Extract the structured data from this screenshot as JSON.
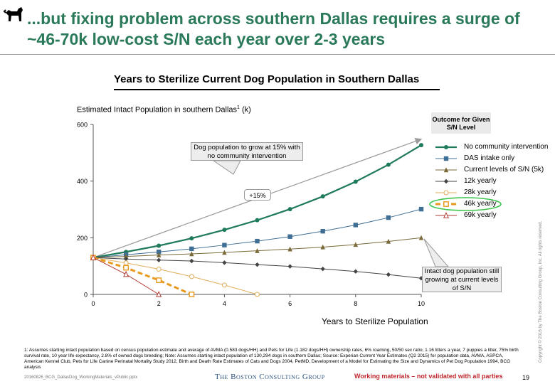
{
  "slide": {
    "title": "...but fixing problem across southern Dallas requires a surge of ~46-70k low-cost S/N each year over 2-3 years",
    "chart_title": "Years to Sterilize Current Dog Population in Southern Dallas",
    "footnote": "1: Assumes starting intact population based on census population estimate and average of AVMA (0.583 dogs/HH) and Pets for Life (1.182 dogs/HH) ownership rates, 6% roaming, 50/50 sex ratio, 1.16 litters a year, 7 puppies a litter, 75% birth survival rate, 10 year life expectancy, 2.8% of owned dogs breeding; Note: Assumes starting intact population of 130,294 dogs in southern Dallas; Source: Experian Current Year Estimates (Q2 2015) for population data, AVMA, ASPCA, American Kennel Club, Pets for Life Canine Perinatal Mortality Study 2012, Birth and Death Rate Estimates of Cats and Dogs 2004, PetMD, Development of a Model for Estimating the Size and Dynamics of Pet Dog Population 1994, BCG analysis",
    "footer_file": "20160826_BCG_DallasDog_WorkingMaterials_vPublic.pptx",
    "footer_brand": "The Boston Consulting Group",
    "footer_warning": "Working materials – not validated with all parties",
    "page_number": "19",
    "copyright": "Copyright © 2016 by The Boston Consulting Group, Inc. All rights reserved."
  },
  "chart_data": {
    "type": "line",
    "ylabel_main": "Estimated Intact Population in southern Dallas",
    "ylabel_sup": "1",
    "ylabel_unit": " (k)",
    "xlabel": "Years to Sterilize Population",
    "xlim": [
      0,
      10
    ],
    "ylim": [
      0,
      600
    ],
    "xticks": [
      "0",
      "2",
      "4",
      "6",
      "8",
      "10"
    ],
    "yticks": [
      "0",
      "200",
      "400",
      "600"
    ],
    "legend_title": "Outcome for Given S/N Level",
    "series": [
      {
        "name": "No community intervention",
        "color": "#1f7a5a",
        "marker": "circle",
        "dash": false,
        "width": 2.2,
        "points": [
          [
            0,
            130
          ],
          [
            1,
            150
          ],
          [
            2,
            172
          ],
          [
            3,
            198
          ],
          [
            4,
            228
          ],
          [
            5,
            262
          ],
          [
            6,
            301
          ],
          [
            7,
            346
          ],
          [
            8,
            398
          ],
          [
            9,
            458
          ],
          [
            10,
            527
          ]
        ]
      },
      {
        "name": "DAS intake only",
        "color": "#3f6f95",
        "marker": "square",
        "dash": false,
        "width": 1,
        "points": [
          [
            0,
            130
          ],
          [
            1,
            140
          ],
          [
            2,
            150
          ],
          [
            3,
            161
          ],
          [
            4,
            174
          ],
          [
            5,
            188
          ],
          [
            6,
            204
          ],
          [
            7,
            223
          ],
          [
            8,
            245
          ],
          [
            9,
            271
          ],
          [
            10,
            301
          ]
        ]
      },
      {
        "name": "Current levels of S/N (5k)",
        "color": "#7a6a3a",
        "marker": "triangle",
        "dash": false,
        "width": 1,
        "points": [
          [
            0,
            130
          ],
          [
            1,
            134
          ],
          [
            2,
            139
          ],
          [
            3,
            143
          ],
          [
            4,
            148
          ],
          [
            5,
            154
          ],
          [
            6,
            160
          ],
          [
            7,
            167
          ],
          [
            8,
            176
          ],
          [
            9,
            187
          ],
          [
            10,
            200
          ]
        ]
      },
      {
        "name": "12k yearly",
        "color": "#444444",
        "marker": "diamond",
        "dash": false,
        "width": 1,
        "points": [
          [
            0,
            130
          ],
          [
            1,
            125
          ],
          [
            2,
            121
          ],
          [
            3,
            118
          ],
          [
            4,
            112
          ],
          [
            5,
            105
          ],
          [
            6,
            99
          ],
          [
            7,
            90
          ],
          [
            8,
            81
          ],
          [
            9,
            70
          ],
          [
            10,
            57
          ]
        ]
      },
      {
        "name": "28k yearly",
        "color": "#e0ae5a",
        "marker": "circle-open",
        "dash": false,
        "width": 1,
        "points": [
          [
            0,
            130
          ],
          [
            1,
            111
          ],
          [
            2,
            89
          ],
          [
            3,
            63
          ],
          [
            4,
            33
          ],
          [
            5,
            0
          ]
        ]
      },
      {
        "name": "46k yearly",
        "color": "#e89a1e",
        "marker": "square-open",
        "dash": true,
        "width": 3,
        "points": [
          [
            0,
            130
          ],
          [
            1,
            94
          ],
          [
            2,
            50
          ],
          [
            3,
            0
          ]
        ]
      },
      {
        "name": "69k yearly",
        "color": "#b23a32",
        "marker": "triangle-open",
        "dash": false,
        "width": 1,
        "points": [
          [
            0,
            130
          ],
          [
            1,
            71
          ],
          [
            2,
            0
          ]
        ]
      }
    ],
    "trend_label": "+15%",
    "annotations": {
      "growth_callout": "Dog population to grow at 15% with no community intervention",
      "intact_callout": "Intact dog population still growing at current levels of S/N"
    }
  }
}
